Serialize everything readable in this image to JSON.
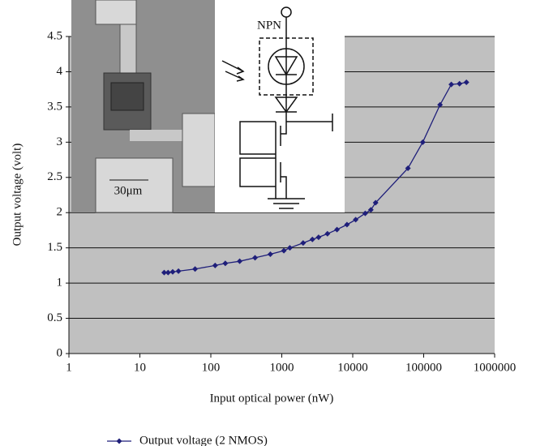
{
  "chart_data": {
    "type": "line",
    "xscale": "log",
    "x_label": "Input optical power (nW)",
    "y_label": "Output voltage (volt)",
    "annotations": [
      "NPN",
      "30μm"
    ],
    "x": [
      22,
      25,
      29,
      35,
      60,
      115,
      160,
      255,
      420,
      690,
      1070,
      1300,
      2000,
      2700,
      3300,
      4400,
      6000,
      8300,
      11000,
      15000,
      18000,
      21000,
      60000,
      97000,
      170000,
      245000,
      320000,
      400000
    ],
    "series": [
      {
        "name": "Output voltage (2 NMOS)",
        "color": "#1f1f7a",
        "values": [
          1.15,
          1.15,
          1.16,
          1.17,
          1.2,
          1.25,
          1.28,
          1.31,
          1.36,
          1.41,
          1.46,
          1.5,
          1.57,
          1.62,
          1.65,
          1.7,
          1.76,
          1.83,
          1.9,
          1.99,
          2.04,
          2.14,
          2.63,
          3.0,
          3.53,
          3.82,
          3.83,
          3.85
        ]
      }
    ],
    "xlim": [
      1,
      1000000
    ],
    "xticks": [
      1,
      10,
      100,
      1000,
      10000,
      100000,
      1000000
    ],
    "ylim": [
      0,
      4.5
    ],
    "yticks": [
      0,
      0.5,
      1,
      1.5,
      2,
      2.5,
      3,
      3.5,
      4,
      4.5
    ],
    "grid": true,
    "plot_background": "#c0c0c0",
    "legend": "bottom"
  }
}
